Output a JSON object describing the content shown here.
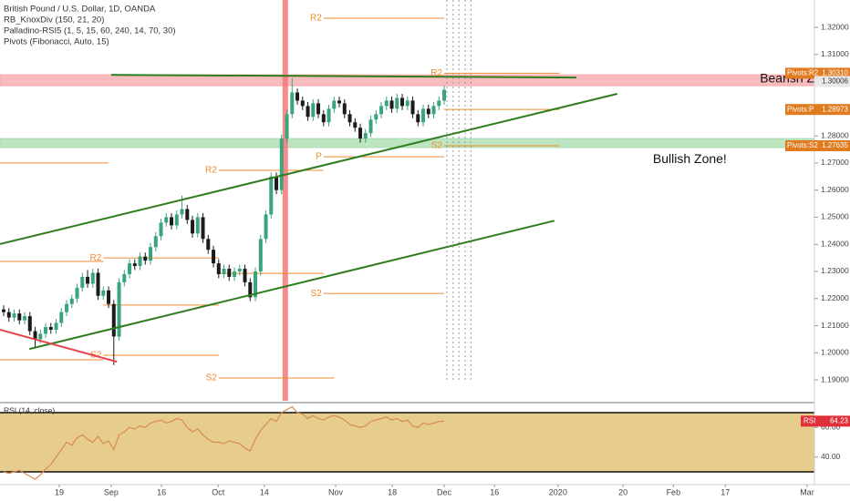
{
  "header": {
    "lines": [
      "British Pound / U.S. Dollar, 1D, OANDA",
      "RB_KnoxDiv (150, 21, 20)",
      "Palladino-RSI5 (1, 5, 15, 60, 240, 14, 70, 30)",
      "Pivots (Fibonacci, Auto, 15)"
    ]
  },
  "chart_data": [
    {
      "type": "candlestick",
      "up_color": "#3aa57a",
      "down_color": "#1b1b1b",
      "open": [
        1.216,
        1.215,
        1.213,
        1.2145,
        1.212,
        1.2135,
        1.208,
        1.205,
        1.207,
        1.2095,
        1.2085,
        1.211,
        1.215,
        1.218,
        1.22,
        1.224,
        1.228,
        1.2255,
        1.2295,
        1.221,
        1.223,
        1.218,
        1.206,
        1.226,
        1.229,
        1.233,
        1.232,
        1.2355,
        1.234,
        1.239,
        1.243,
        1.248,
        1.25,
        1.247,
        1.251,
        1.253,
        1.249,
        1.244,
        1.25,
        1.242,
        1.238,
        1.233,
        1.229,
        1.231,
        1.228,
        1.23,
        1.231,
        1.226,
        1.2205,
        1.23,
        1.242,
        1.251,
        1.265,
        1.26,
        1.279,
        1.288,
        1.296,
        1.293,
        1.291,
        1.287,
        1.292,
        1.288,
        1.285,
        1.29,
        1.293,
        1.292,
        1.288,
        1.285,
        1.283,
        1.279,
        1.281,
        1.286,
        1.288,
        1.291,
        1.293,
        1.29,
        1.294,
        1.291,
        1.293,
        1.288,
        1.285,
        1.29,
        1.288,
        1.291,
        1.293
      ],
      "high": [
        1.2175,
        1.2165,
        1.216,
        1.216,
        1.215,
        1.215,
        1.2095,
        1.2085,
        1.211,
        1.211,
        1.2125,
        1.2165,
        1.2195,
        1.2215,
        1.2255,
        1.2295,
        1.2305,
        1.231,
        1.231,
        1.2245,
        1.2245,
        1.2195,
        1.2275,
        1.2305,
        1.2345,
        1.2345,
        1.237,
        1.237,
        1.2405,
        1.2445,
        1.2495,
        1.2515,
        1.2515,
        1.2525,
        1.258,
        1.2545,
        1.2505,
        1.2515,
        1.2515,
        1.2435,
        1.2395,
        1.2345,
        1.2325,
        1.2325,
        1.2315,
        1.2325,
        1.2325,
        1.2275,
        1.2315,
        1.2435,
        1.2525,
        1.2665,
        1.2665,
        1.2805,
        1.2895,
        1.3013,
        1.2975,
        1.2945,
        1.2925,
        1.2935,
        1.2935,
        1.2895,
        1.2915,
        1.2945,
        1.2945,
        1.2935,
        1.2895,
        1.2865,
        1.2845,
        1.2825,
        1.2875,
        1.2895,
        1.2925,
        1.2945,
        1.2945,
        1.2955,
        1.2955,
        1.2945,
        1.2945,
        1.2895,
        1.2915,
        1.2915,
        1.2925,
        1.2945,
        1.2985
      ],
      "low": [
        1.2135,
        1.2115,
        1.2115,
        1.2105,
        1.2105,
        1.2065,
        1.202,
        1.2035,
        1.2055,
        1.207,
        1.207,
        1.2095,
        1.2135,
        1.2165,
        1.2185,
        1.2225,
        1.224,
        1.224,
        1.2195,
        1.2195,
        1.2165,
        1.1955,
        1.2045,
        1.2245,
        1.2275,
        1.2305,
        1.2305,
        1.2325,
        1.2325,
        1.2375,
        1.2415,
        1.2465,
        1.2455,
        1.2455,
        1.2495,
        1.2475,
        1.2425,
        1.2425,
        1.2405,
        1.2365,
        1.2315,
        1.2275,
        1.2275,
        1.2265,
        1.2265,
        1.2285,
        1.2245,
        1.219,
        1.219,
        1.2285,
        1.2405,
        1.2495,
        1.2585,
        1.2585,
        1.2775,
        1.2865,
        1.2915,
        1.2895,
        1.2855,
        1.2855,
        1.2865,
        1.2835,
        1.2835,
        1.2885,
        1.2905,
        1.2865,
        1.2835,
        1.2815,
        1.2775,
        1.2775,
        1.2795,
        1.2845,
        1.2865,
        1.2895,
        1.2885,
        1.2885,
        1.2895,
        1.2895,
        1.2865,
        1.2835,
        1.2835,
        1.2865,
        1.2865,
        1.2895,
        1.2915
      ],
      "close": [
        1.215,
        1.213,
        1.2145,
        1.212,
        1.2135,
        1.208,
        1.205,
        1.207,
        1.2095,
        1.2085,
        1.211,
        1.215,
        1.218,
        1.22,
        1.224,
        1.228,
        1.2255,
        1.2295,
        1.221,
        1.223,
        1.218,
        1.206,
        1.226,
        1.229,
        1.233,
        1.232,
        1.2355,
        1.234,
        1.239,
        1.243,
        1.248,
        1.25,
        1.247,
        1.251,
        1.253,
        1.249,
        1.244,
        1.25,
        1.242,
        1.238,
        1.233,
        1.229,
        1.231,
        1.228,
        1.23,
        1.231,
        1.226,
        1.2205,
        1.23,
        1.242,
        1.251,
        1.265,
        1.26,
        1.279,
        1.288,
        1.296,
        1.293,
        1.291,
        1.287,
        1.292,
        1.288,
        1.285,
        1.29,
        1.293,
        1.292,
        1.288,
        1.285,
        1.283,
        1.279,
        1.281,
        1.286,
        1.288,
        1.291,
        1.293,
        1.29,
        1.294,
        1.291,
        1.293,
        1.288,
        1.285,
        1.29,
        1.288,
        1.291,
        1.293,
        1.297
      ],
      "xlim": [
        -0.7,
        154.6
      ],
      "ylim": [
        1.1823,
        1.3301
      ],
      "yticks": [
        {
          "value": 1.19,
          "label": "1.19000"
        },
        {
          "value": 1.2,
          "label": "1.20000"
        },
        {
          "value": 1.21,
          "label": "1.21000"
        },
        {
          "value": 1.22,
          "label": "1.22000"
        },
        {
          "value": 1.23,
          "label": "1.23000"
        },
        {
          "value": 1.24,
          "label": "1.24000"
        },
        {
          "value": 1.25,
          "label": "1.25000"
        },
        {
          "value": 1.26,
          "label": "1.26000"
        },
        {
          "value": 1.27,
          "label": "1.27000"
        },
        {
          "value": 1.28,
          "label": "1.28000"
        },
        {
          "value": 1.29,
          "label": "1.29000"
        },
        {
          "value": 1.3,
          "label": "1.30000"
        },
        {
          "value": 1.31,
          "label": "1.31000"
        },
        {
          "value": 1.32,
          "label": "1.32000"
        }
      ],
      "xticks": [
        {
          "value": 10.6,
          "label": "19"
        },
        {
          "value": 20.5,
          "label": "Sep"
        },
        {
          "value": 30.1,
          "label": "16"
        },
        {
          "value": 40.9,
          "label": "Oct"
        },
        {
          "value": 49.7,
          "label": "14"
        },
        {
          "value": 63.3,
          "label": "Nov"
        },
        {
          "value": 74.1,
          "label": "18"
        },
        {
          "value": 84.0,
          "label": "Dec"
        },
        {
          "value": 93.6,
          "label": "16"
        },
        {
          "value": 105.7,
          "label": "2020"
        },
        {
          "value": 118.1,
          "label": "20"
        },
        {
          "value": 127.7,
          "label": "Feb"
        },
        {
          "value": 137.6,
          "label": "17"
        },
        {
          "value": 153.2,
          "label": "Mar"
        }
      ],
      "pivot_color": "#ef8b2c",
      "pivots": [
        {
          "label": "R2",
          "value": 1.3234,
          "from": 61,
          "to": 84
        },
        {
          "label": "R2",
          "value": 1.3031,
          "from": 84,
          "to": 106
        },
        {
          "value": 1.28973,
          "from": 84,
          "to": 106
        },
        {
          "label": "S2",
          "value": 1.27635,
          "from": 84,
          "to": 106
        },
        {
          "label": "P",
          "value": 1.2723,
          "from": 61,
          "to": 84
        },
        {
          "label": "R2",
          "value": 1.2673,
          "from": 41,
          "to": 61
        },
        {
          "label": "S2",
          "value": 1.2219,
          "from": 61,
          "to": 84
        },
        {
          "label": "R2",
          "value": 1.235,
          "from": 19,
          "to": 41
        },
        {
          "value": 1.2293,
          "from": 41,
          "to": 61
        },
        {
          "value": 1.2176,
          "from": 19,
          "to": 41
        },
        {
          "label": "S2",
          "value": 1.1991,
          "from": 19,
          "to": 41
        },
        {
          "label": "S2",
          "value": 1.1907,
          "from": 41,
          "to": 63
        },
        {
          "value": 1.27,
          "from": -1,
          "to": 20
        },
        {
          "value": 1.2337,
          "from": -1,
          "to": 19
        },
        {
          "value": 1.1974,
          "from": -1,
          "to": 19
        }
      ],
      "zones": [
        {
          "color": "#f7a5a8",
          "range": [
            1.2985,
            1.3025
          ]
        },
        {
          "color": "#a8dcae",
          "range": [
            1.2757,
            1.279
          ]
        }
      ],
      "trendlines": [
        {
          "color": "#2f7d1e",
          "x": [
            20.5,
            109.2
          ],
          "y": [
            1.3025,
            1.3015
          ]
        },
        {
          "color": "#2f7d1e",
          "x": [
            -0.7,
            117
          ],
          "y": [
            1.2401,
            1.2955
          ]
        },
        {
          "color": "#2f7d1e",
          "x": [
            4.9,
            105
          ],
          "y": [
            1.2014,
            1.2487
          ]
        },
        {
          "color": "#e0474c",
          "x": [
            -0.7,
            21.6
          ],
          "y": [
            1.2085,
            1.1967
          ]
        }
      ],
      "highlight_x": [
        {
          "x": 53.7,
          "color": "#f4787c"
        }
      ],
      "dotted_x": [
        84.5,
        85.7,
        86.8,
        88,
        89.1
      ],
      "annotations": [
        {
          "text": "Bearish Zone!",
          "x": 144.2,
          "y": 1.3009
        },
        {
          "text": "Bullish Zone!",
          "x": 123.8,
          "y": 1.2713
        }
      ],
      "price_labels": [
        {
          "name": "Pivots:R2",
          "value": 1.3031,
          "value_label": "1.30310",
          "color": "#e07b1f"
        },
        {
          "name": "Pivots:P",
          "value": 1.28973,
          "value_label": "1.28973",
          "color": "#e07b1f"
        },
        {
          "name": "Pivots:S2",
          "value": 1.27635,
          "value_label": "1.27635",
          "color": "#e07b1f"
        },
        {
          "value": 1.30006,
          "value_label": "1.30006",
          "color": "#e8e8e8"
        }
      ]
    },
    {
      "type": "line",
      "title": "RSI (14, close)",
      "ylim": [
        21.4,
        74.9
      ],
      "yticks": [
        {
          "value": 60,
          "label": "60.00"
        },
        {
          "value": 40,
          "label": "40.00"
        }
      ],
      "band": [
        30,
        70
      ],
      "band_color": "#e6cd8e",
      "label_color": "#e0303a",
      "series": [
        {
          "name": "RSI",
          "color": "#d98a4f",
          "values": [
            30,
            29,
            30,
            31,
            29,
            27,
            25,
            28,
            32,
            35,
            40,
            45,
            50,
            48,
            53,
            55,
            52,
            50,
            54,
            49,
            51,
            45,
            55,
            57,
            60,
            59,
            61,
            60,
            63,
            64,
            65,
            63,
            64,
            66,
            65,
            60,
            57,
            59,
            55,
            52,
            50,
            50,
            49,
            51,
            50,
            49,
            46,
            44,
            52,
            58,
            62,
            66,
            64,
            70,
            72,
            74,
            70,
            69,
            66,
            68,
            66,
            65,
            67,
            68,
            67,
            65,
            62,
            61,
            60,
            61,
            64,
            65,
            66,
            67,
            65,
            66,
            64,
            65,
            61,
            60,
            63,
            62,
            63,
            64,
            64.23
          ]
        }
      ]
    }
  ]
}
